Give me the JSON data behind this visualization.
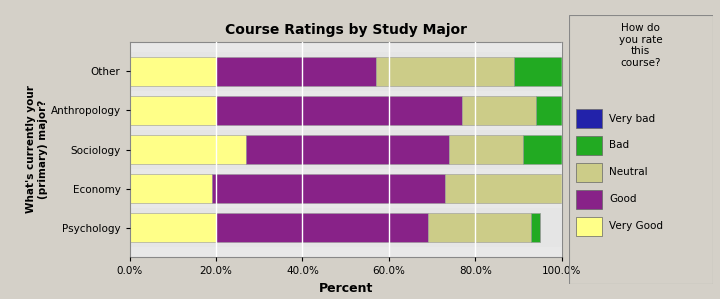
{
  "title": "Course Ratings by Study Major",
  "xlabel": "Percent",
  "ylabel": "What's currently your\n(primary) major?",
  "categories": [
    "Psychology",
    "Economy",
    "Sociology",
    "Anthropology",
    "Other"
  ],
  "legend_title": "How do\nyou rate\nthis\ncourse?",
  "segments": {
    "Very Good": [
      20.0,
      19.0,
      27.0,
      20.0,
      20.0
    ],
    "Good": [
      49.0,
      54.0,
      47.0,
      57.0,
      37.0
    ],
    "Neutral": [
      24.0,
      27.0,
      17.0,
      17.0,
      32.0
    ],
    "Bad": [
      2.0,
      0.0,
      9.0,
      6.0,
      11.0
    ],
    "Very bad": [
      0.0,
      0.0,
      0.0,
      0.0,
      0.0
    ]
  },
  "colors": {
    "Very Good": "#FFFF88",
    "Good": "#882288",
    "Neutral": "#CCCC88",
    "Bad": "#22AA22",
    "Very bad": "#2222AA"
  },
  "legend_order": [
    "Very bad",
    "Bad",
    "Neutral",
    "Good",
    "Very Good"
  ],
  "bg_color": "#D4D0C8",
  "plot_bg_color": "#E8E8E8",
  "xlim": [
    0,
    100
  ],
  "xticks": [
    0,
    20,
    40,
    60,
    80,
    100
  ],
  "xticklabels": [
    "0.0%",
    "20.0%",
    "40.0%",
    "60.0%",
    "80.0%",
    "100.0%"
  ],
  "figsize": [
    7.2,
    2.99
  ],
  "dpi": 100
}
